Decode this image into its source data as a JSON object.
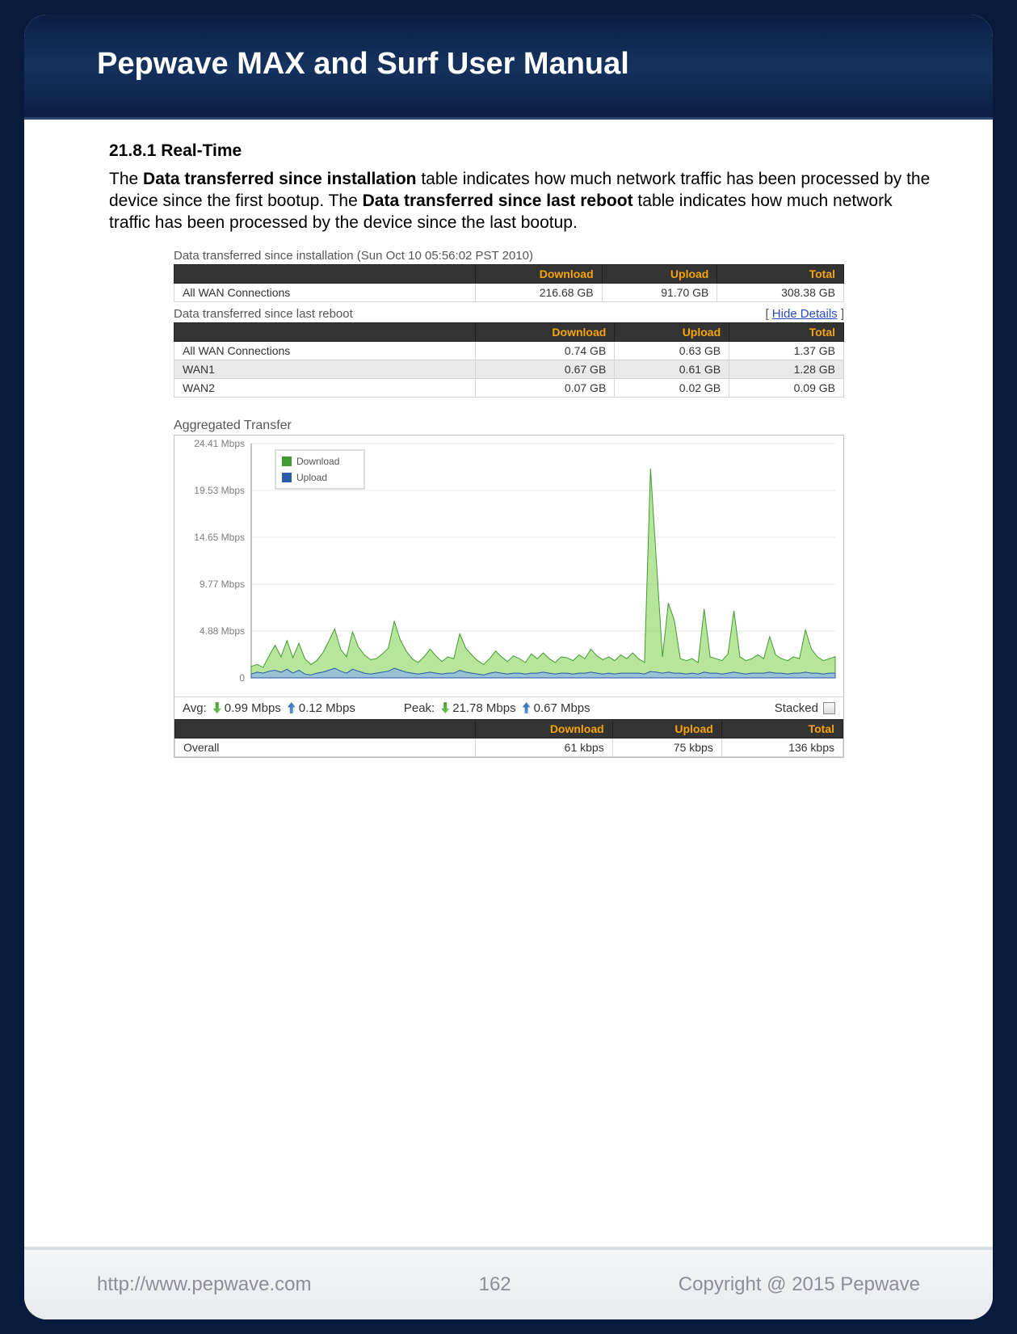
{
  "header": {
    "title": "Pepwave MAX and Surf User Manual"
  },
  "section": {
    "number": "21.8.1 Real-Time",
    "p1a": "The ",
    "p1b": "Data transferred since installation",
    "p1c": " table indicates how much network traffic has been processed by the device since the first bootup. The ",
    "p1d": "Data transferred since last reboot",
    "p1e": " table indicates how much network traffic has been processed by the device since the last bootup."
  },
  "ui": {
    "install_caption": "Data transferred since installation (Sun Oct 10 05:56:02 PST 2010)",
    "reboot_caption": "Data transferred since last reboot",
    "hide_details": "Hide Details",
    "cols": {
      "name": "",
      "download": "Download",
      "upload": "Upload",
      "total": "Total"
    },
    "install_rows": [
      {
        "name": "All WAN Connections",
        "download": "216.68 GB",
        "upload": "91.70 GB",
        "total": "308.38 GB"
      }
    ],
    "reboot_rows": [
      {
        "name": "All WAN Connections",
        "download": "0.74 GB",
        "upload": "0.63 GB",
        "total": "1.37 GB"
      },
      {
        "name": "WAN1",
        "download": "0.67 GB",
        "upload": "0.61 GB",
        "total": "1.28 GB"
      },
      {
        "name": "WAN2",
        "download": "0.07 GB",
        "upload": "0.02 GB",
        "total": "0.09 GB"
      }
    ],
    "chart": {
      "title": "Aggregated Transfer",
      "legend": {
        "download": "Download",
        "upload": "Upload"
      },
      "y_ticks": [
        "24.41 Mbps",
        "19.53 Mbps",
        "14.65 Mbps",
        "9.77 Mbps",
        "4.88 Mbps",
        "0"
      ],
      "y_max": 24.41,
      "colors": {
        "download_fill": "#9fdc7a",
        "download_stroke": "#3f9c2f",
        "upload_fill": "#8fb6e8",
        "upload_stroke": "#2a5aa8",
        "grid": "#e6e6e6",
        "axis": "#888888",
        "bg": "#ffffff",
        "tick_text": "#7d7d7d"
      },
      "download_series": [
        1.2,
        1.4,
        1.1,
        2.3,
        3.4,
        2.2,
        3.9,
        2.1,
        3.6,
        2.0,
        1.4,
        1.8,
        2.6,
        3.8,
        5.1,
        3.0,
        2.2,
        4.8,
        3.2,
        2.4,
        1.9,
        2.0,
        2.5,
        3.1,
        5.9,
        4.0,
        2.8,
        2.0,
        1.6,
        2.2,
        3.0,
        2.3,
        1.7,
        2.2,
        2.0,
        4.6,
        3.1,
        2.4,
        1.8,
        1.4,
        2.0,
        2.8,
        2.2,
        1.7,
        2.3,
        2.0,
        1.6,
        2.5,
        2.0,
        2.6,
        2.0,
        1.6,
        2.2,
        2.1,
        1.8,
        2.4,
        2.0,
        3.0,
        2.3,
        1.9,
        2.2,
        1.8,
        2.4,
        2.0,
        2.6,
        2.0,
        1.6,
        21.8,
        12.0,
        2.2,
        7.8,
        6.0,
        2.0,
        1.8,
        2.0,
        1.6,
        7.2,
        2.2,
        2.0,
        1.8,
        2.5,
        7.0,
        2.2,
        1.8,
        2.0,
        2.4,
        2.0,
        4.3,
        2.4,
        2.0,
        1.8,
        2.2,
        2.0,
        5.0,
        3.0,
        2.2,
        1.8,
        2.0,
        2.2
      ],
      "upload_series": [
        0.4,
        0.6,
        0.5,
        0.7,
        0.8,
        0.6,
        0.9,
        0.5,
        0.8,
        0.4,
        0.3,
        0.5,
        0.6,
        0.8,
        1.0,
        0.7,
        0.5,
        0.9,
        0.7,
        0.5,
        0.4,
        0.5,
        0.6,
        0.7,
        1.0,
        0.8,
        0.6,
        0.5,
        0.4,
        0.5,
        0.6,
        0.5,
        0.4,
        0.5,
        0.5,
        0.8,
        0.6,
        0.5,
        0.4,
        0.3,
        0.5,
        0.6,
        0.5,
        0.4,
        0.5,
        0.5,
        0.4,
        0.5,
        0.5,
        0.6,
        0.5,
        0.4,
        0.5,
        0.5,
        0.4,
        0.5,
        0.5,
        0.6,
        0.5,
        0.4,
        0.5,
        0.4,
        0.5,
        0.5,
        0.5,
        0.5,
        0.4,
        0.67,
        0.6,
        0.5,
        0.6,
        0.5,
        0.5,
        0.4,
        0.5,
        0.4,
        0.6,
        0.5,
        0.5,
        0.4,
        0.5,
        0.6,
        0.5,
        0.4,
        0.5,
        0.5,
        0.5,
        0.6,
        0.5,
        0.5,
        0.4,
        0.5,
        0.5,
        0.6,
        0.5,
        0.5,
        0.4,
        0.5,
        0.5
      ]
    },
    "stats": {
      "avg_label": "Avg:",
      "avg_down": "0.99 Mbps",
      "avg_up": "0.12 Mbps",
      "peak_label": "Peak:",
      "peak_down": "21.78 Mbps",
      "peak_up": "0.67 Mbps",
      "stacked_label": "Stacked"
    },
    "overall_row": {
      "name": "Overall",
      "download": "61 kbps",
      "upload": "75 kbps",
      "total": "136 kbps"
    }
  },
  "footer": {
    "url": "http://www.pepwave.com",
    "page": "162",
    "copyright": "Copyright @ 2015 Pepwave"
  }
}
